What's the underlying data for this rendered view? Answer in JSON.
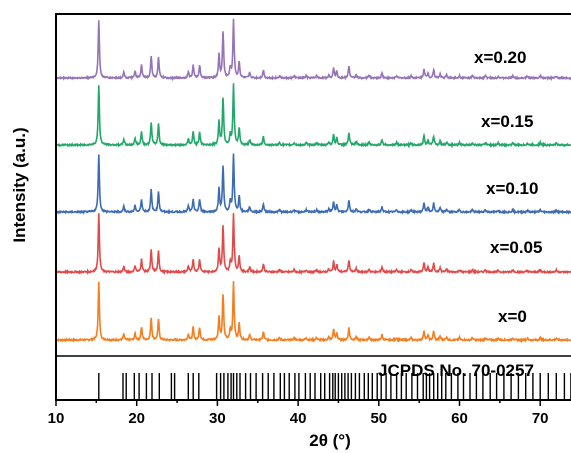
{
  "chart_data": {
    "type": "line",
    "title": "",
    "xlabel": "2θ (°)",
    "ylabel": "Intensity (a.u.)",
    "xlim": [
      10,
      74
    ],
    "xticks": [
      10,
      20,
      30,
      40,
      50,
      60,
      70
    ],
    "grid": false,
    "reference_label": "JCPDS No. 70-0257",
    "reference_lines": [
      15.3,
      18.3,
      18.7,
      19.7,
      20.3,
      21.2,
      21.9,
      22.8,
      24.3,
      24.7,
      26.4,
      27.0,
      27.7,
      29.9,
      30.4,
      30.8,
      31.3,
      31.7,
      32.0,
      32.4,
      32.8,
      33.5,
      34.1,
      34.8,
      35.6,
      36.3,
      37.0,
      37.8,
      38.3,
      38.9,
      39.6,
      40.1,
      40.9,
      41.5,
      42.1,
      42.8,
      43.3,
      43.9,
      44.3,
      44.6,
      45.0,
      45.4,
      45.8,
      46.2,
      46.6,
      47.1,
      47.6,
      48.2,
      48.7,
      49.2,
      49.8,
      50.3,
      50.9,
      51.5,
      52.2,
      52.8,
      53.4,
      54.1,
      54.8,
      55.5,
      55.9,
      56.3,
      56.8,
      57.3,
      57.8,
      58.3,
      59.0,
      59.8,
      60.5,
      61.3,
      62.1,
      62.9,
      63.8,
      64.6,
      65.5,
      66.4,
      67.3,
      68.2,
      69.1,
      70.0,
      71.0,
      72.0,
      73.0,
      73.8
    ],
    "peaks": [
      [
        15.3,
        1.0
      ],
      [
        18.4,
        0.1
      ],
      [
        19.8,
        0.11
      ],
      [
        20.6,
        0.22
      ],
      [
        21.8,
        0.38
      ],
      [
        22.7,
        0.36
      ],
      [
        26.4,
        0.1
      ],
      [
        27.0,
        0.22
      ],
      [
        27.8,
        0.22
      ],
      [
        30.2,
        0.4
      ],
      [
        30.7,
        0.78
      ],
      [
        31.6,
        0.17
      ],
      [
        32.0,
        1.0
      ],
      [
        32.7,
        0.28
      ],
      [
        34.0,
        0.09
      ],
      [
        35.7,
        0.14
      ],
      [
        37.7,
        0.04
      ],
      [
        39.5,
        0.04
      ],
      [
        41.0,
        0.04
      ],
      [
        42.3,
        0.04
      ],
      [
        43.8,
        0.05
      ],
      [
        44.4,
        0.18
      ],
      [
        44.8,
        0.12
      ],
      [
        46.3,
        0.21
      ],
      [
        47.2,
        0.06
      ],
      [
        48.8,
        0.05
      ],
      [
        50.4,
        0.09
      ],
      [
        52.2,
        0.04
      ],
      [
        54.0,
        0.04
      ],
      [
        55.6,
        0.16
      ],
      [
        56.1,
        0.08
      ],
      [
        56.8,
        0.15
      ],
      [
        57.6,
        0.07
      ],
      [
        58.4,
        0.05
      ],
      [
        60.0,
        0.04
      ],
      [
        61.6,
        0.04
      ],
      [
        63.2,
        0.04
      ],
      [
        64.8,
        0.03
      ],
      [
        66.6,
        0.04
      ],
      [
        68.4,
        0.03
      ],
      [
        70.0,
        0.04
      ],
      [
        72.0,
        0.03
      ]
    ],
    "series": [
      {
        "name": "x=0",
        "color": "#f47e20"
      },
      {
        "name": "x=0.05",
        "color": "#e24a4a"
      },
      {
        "name": "x=0.10",
        "color": "#3d6cb3"
      },
      {
        "name": "x=0.15",
        "color": "#22a86a"
      },
      {
        "name": "x=0.20",
        "color": "#9574b8"
      }
    ]
  }
}
